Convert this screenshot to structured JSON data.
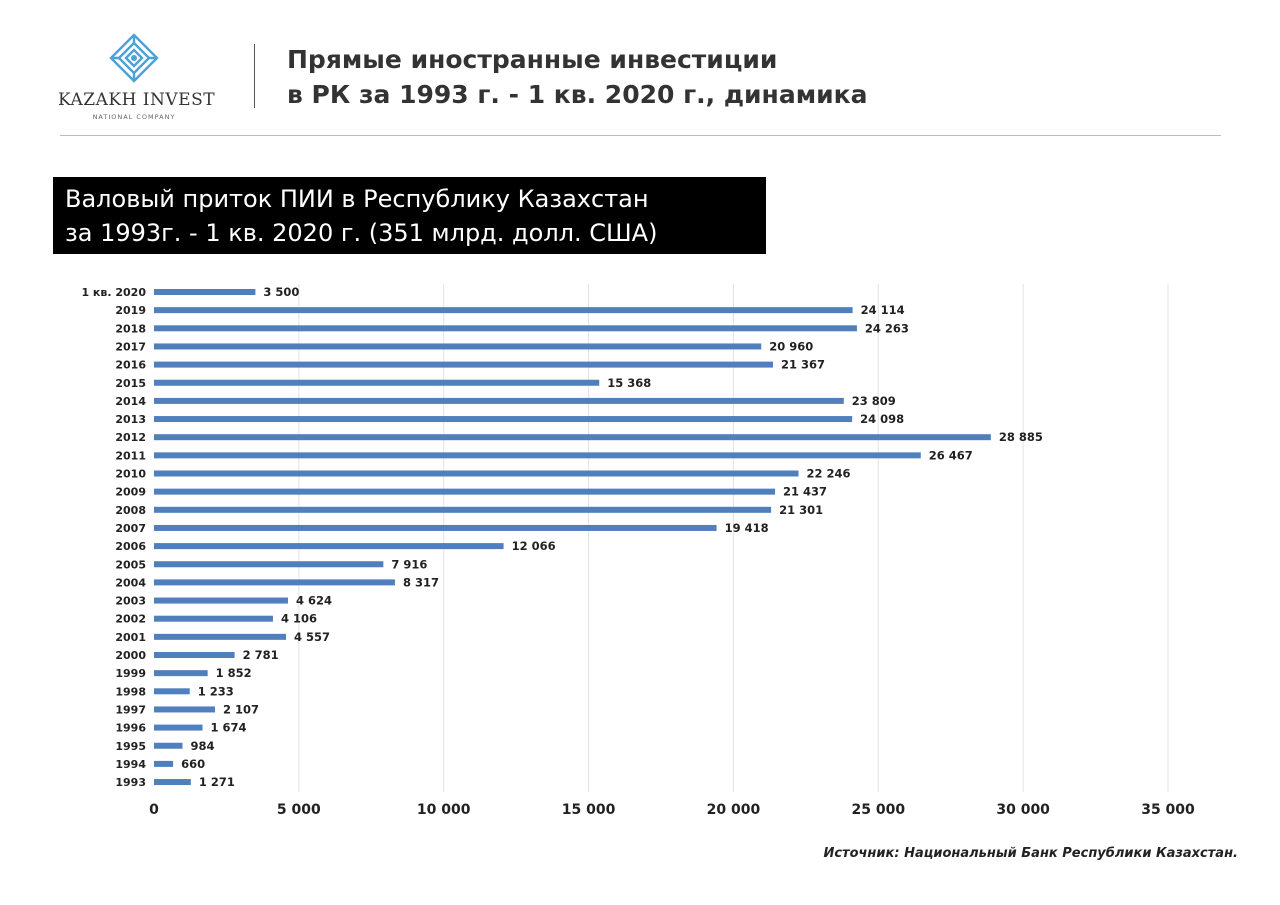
{
  "header": {
    "logo": {
      "name": "KAZAKH INVEST",
      "subtitle": "NATIONAL COMPANY",
      "icon": "kazakh-ornament-icon",
      "color": "#4aa3d8"
    },
    "title_line1": "Прямые иностранные инвестиции",
    "title_line2": "в РК за 1993 г. - 1 кв. 2020 г., динамика"
  },
  "chart_heading": {
    "line1": "Валовый приток ПИИ в Республику Казахстан",
    "line2": "за 1993г. - 1 кв. 2020 г. (351 млрд. долл. США)"
  },
  "chart_data": {
    "type": "bar",
    "orientation": "horizontal",
    "categories": [
      "1 кв. 2020",
      "2019",
      "2018",
      "2017",
      "2016",
      "2015",
      "2014",
      "2013",
      "2012",
      "2011",
      "2010",
      "2009",
      "2008",
      "2007",
      "2006",
      "2005",
      "2004",
      "2003",
      "2002",
      "2001",
      "2000",
      "1999",
      "1998",
      "1997",
      "1996",
      "1995",
      "1994",
      "1993"
    ],
    "values": [
      3500,
      24114,
      24263,
      20960,
      21367,
      15368,
      23809,
      24098,
      28885,
      26467,
      22246,
      21437,
      21301,
      19418,
      12066,
      7916,
      8317,
      4624,
      4106,
      4557,
      2781,
      1852,
      1233,
      2107,
      1674,
      984,
      660,
      1271
    ],
    "data_labels": [
      "3 500",
      "24  114",
      "24  263",
      "20 960",
      "21  367",
      "15 368",
      "23  809",
      "24  098",
      "28 885",
      "26 467",
      "22  246",
      "21 437",
      "21 301",
      "19 418",
      "12 066",
      "7 916",
      "8 317",
      "4  624",
      "4 106",
      "4 557",
      "2 781",
      "1 852",
      "1 233",
      "2  107",
      "1 674",
      "984",
      "660",
      "1 271"
    ],
    "x_ticks": [
      0,
      5000,
      10000,
      15000,
      20000,
      25000,
      30000,
      35000
    ],
    "x_tick_labels": [
      "0",
      "5 000",
      "10 000",
      "15 000",
      "20 000",
      "25 000",
      "30 000",
      "35 000"
    ],
    "xlim": [
      0,
      35000
    ],
    "grid": true,
    "bar_color": "#4f7fbd",
    "grid_color": "#e3e3e3"
  },
  "source": "Источник: Национальный Банк Республики Казахстан."
}
